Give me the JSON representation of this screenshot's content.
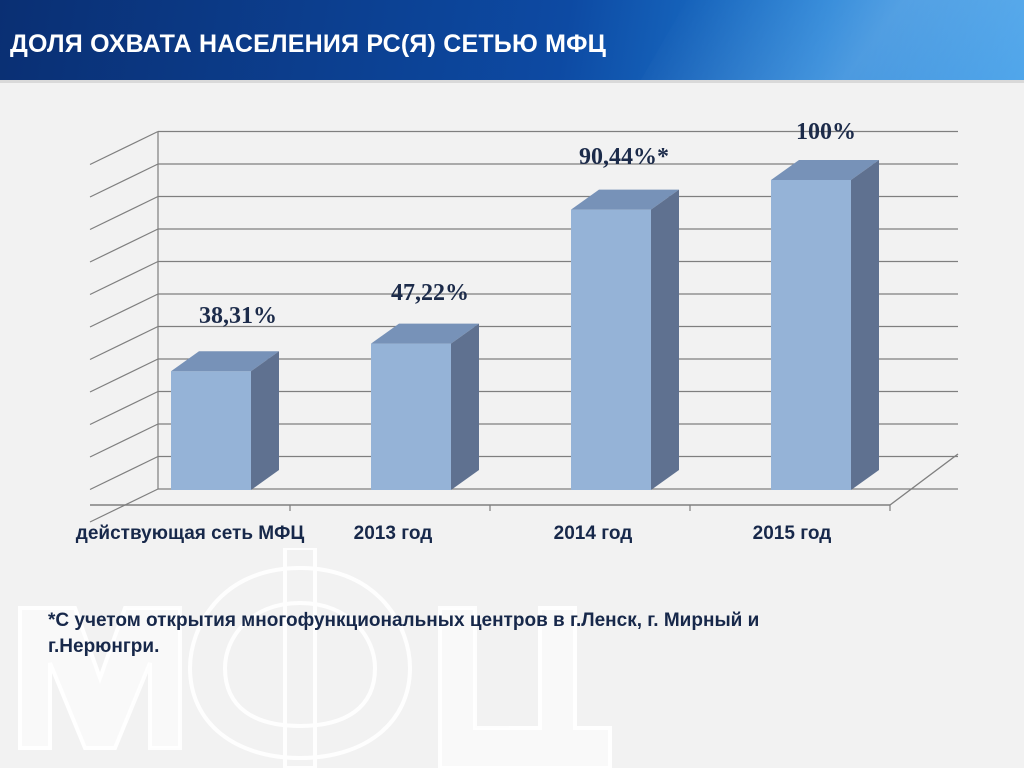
{
  "header": {
    "title": "ДОЛЯ ОХВАТА НАСЕЛЕНИЯ РС(Я) СЕТЬЮ МФЦ"
  },
  "chart_data": {
    "type": "bar",
    "categories": [
      "действующая сеть МФЦ",
      "2013 год",
      "2014 год",
      "2015 год"
    ],
    "values": [
      38.31,
      47.22,
      90.44,
      100
    ],
    "data_labels": [
      "38,31%",
      "47,22%",
      "90,44%*",
      "100%"
    ],
    "ylim": [
      0,
      110
    ],
    "grid": true,
    "legend": "none",
    "colors": {
      "bar_front": "#95b3d7",
      "bar_top": "#7792b8",
      "bar_side": "#5f7190",
      "label": "#1c2b4a"
    }
  },
  "footnote": {
    "line1": "*С учетом открытия многофункциональных центров в г.Ленск, г. Мирный и",
    "line2": "г.Нерюнгри."
  },
  "watermark": {
    "text": "МФЦ"
  }
}
